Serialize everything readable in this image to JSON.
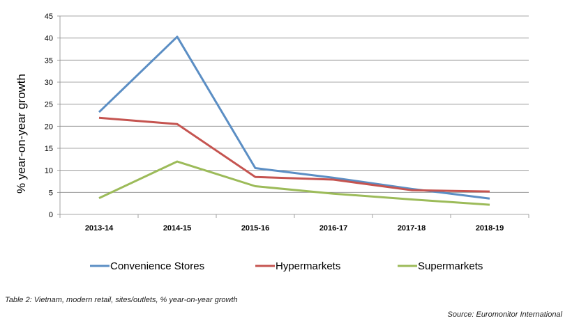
{
  "chart_data": {
    "type": "line",
    "title": "",
    "xlabel": "",
    "ylabel": "% year-on-year growth",
    "ylim": [
      0,
      45
    ],
    "yticks": [
      0,
      5,
      10,
      15,
      20,
      25,
      30,
      35,
      40,
      45
    ],
    "grid": "horizontal",
    "legend_position": "bottom",
    "categories": [
      "2013-14",
      "2014-15",
      "2015-16",
      "2016-17",
      "2017-18",
      "2018-19"
    ],
    "series": [
      {
        "name": "Convenience Stores",
        "color": "#5b8ec4",
        "values": [
          23.2,
          40.3,
          10.5,
          8.3,
          5.8,
          3.6
        ]
      },
      {
        "name": "Hypermarkets",
        "color": "#c55450",
        "values": [
          21.9,
          20.5,
          8.5,
          7.9,
          5.5,
          5.2
        ]
      },
      {
        "name": "Supermarkets",
        "color": "#9cbb59",
        "values": [
          3.7,
          12.0,
          6.4,
          4.7,
          3.4,
          2.2
        ]
      }
    ]
  },
  "caption": "Table 2: Vietnam, modern retail, sites/outlets, % year-on-year growth",
  "source": "Source: Euromonitor International"
}
